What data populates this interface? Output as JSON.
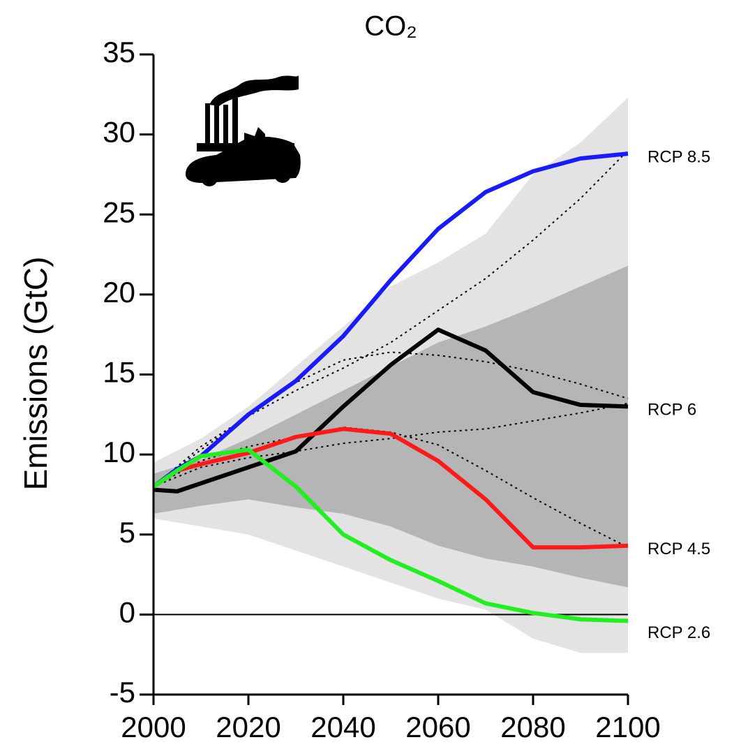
{
  "chart_data": {
    "type": "line",
    "title": "CO₂",
    "y_label": "Emissions (GtC)",
    "x": [
      2000,
      2005,
      2010,
      2020,
      2030,
      2040,
      2050,
      2060,
      2070,
      2080,
      2090,
      2100
    ],
    "series": [
      {
        "name": "RCP 8.5",
        "color": "#1a1aff",
        "values": [
          8.0,
          9.1,
          9.9,
          12.5,
          14.6,
          17.4,
          20.9,
          24.1,
          26.4,
          27.7,
          28.5,
          28.8
        ]
      },
      {
        "name": "RCP 6",
        "color": "#000000",
        "values": [
          7.8,
          7.7,
          8.2,
          9.2,
          10.2,
          13.0,
          15.6,
          17.8,
          16.5,
          13.9,
          13.1,
          13.0
        ]
      },
      {
        "name": "RCP 4.5",
        "color": "#ff1a1a",
        "values": [
          8.0,
          9.0,
          9.4,
          10.1,
          11.1,
          11.6,
          11.3,
          9.6,
          7.2,
          4.2,
          4.2,
          4.3
        ]
      },
      {
        "name": "RCP 2.6",
        "color": "#22ee22",
        "values": [
          8.0,
          9.0,
          9.9,
          10.3,
          8.0,
          5.0,
          3.4,
          2.1,
          0.7,
          0.1,
          -0.3,
          -0.4
        ]
      }
    ],
    "reference_lines": {
      "color": "#000000",
      "x": [
        2000,
        2010,
        2020,
        2030,
        2040,
        2050,
        2060,
        2070,
        2080,
        2090,
        2100
      ],
      "lines": [
        {
          "values": [
            8.0,
            10.5,
            12.4,
            14.0,
            15.4,
            17.0,
            19.0,
            21.0,
            23.4,
            26.0,
            29.0
          ]
        },
        {
          "values": [
            8.0,
            10.3,
            12.4,
            14.5,
            15.9,
            16.4,
            16.2,
            15.8,
            15.2,
            14.4,
            13.5
          ]
        },
        {
          "values": [
            8.0,
            9.2,
            9.8,
            10.2,
            10.7,
            11.0,
            11.4,
            11.6,
            12.1,
            12.6,
            13.2
          ]
        },
        {
          "values": [
            8.0,
            9.6,
            10.5,
            11.1,
            11.7,
            11.4,
            10.6,
            9.0,
            7.3,
            5.7,
            4.2
          ]
        }
      ]
    },
    "bands": {
      "x": [
        2000,
        2010,
        2020,
        2030,
        2040,
        2050,
        2060,
        2070,
        2080,
        2090,
        2100
      ],
      "ranges": [
        {
          "color": "#e3e3e3",
          "upper": [
            9.5,
            11.0,
            13.0,
            15.5,
            18.0,
            20.5,
            22.0,
            23.8,
            27.5,
            29.5,
            32.3
          ],
          "lower": [
            6.0,
            5.5,
            5.0,
            4.0,
            3.0,
            2.0,
            1.0,
            0.3,
            -1.5,
            -2.4,
            -2.4
          ]
        },
        {
          "color": "#b5b5b5",
          "upper": [
            8.8,
            9.7,
            11.0,
            12.5,
            14.0,
            15.5,
            17.0,
            18.0,
            19.2,
            20.5,
            21.8
          ],
          "lower": [
            6.3,
            6.8,
            7.2,
            6.7,
            6.3,
            5.5,
            4.3,
            3.5,
            3.0,
            2.3,
            1.7
          ]
        }
      ]
    },
    "xlim": [
      2000,
      2100
    ],
    "xticks": [
      2000,
      2020,
      2040,
      2060,
      2080,
      2100
    ],
    "ylim": [
      -5,
      35
    ],
    "yticks": [
      -5,
      0,
      5,
      10,
      15,
      20,
      25,
      30,
      35
    ]
  }
}
